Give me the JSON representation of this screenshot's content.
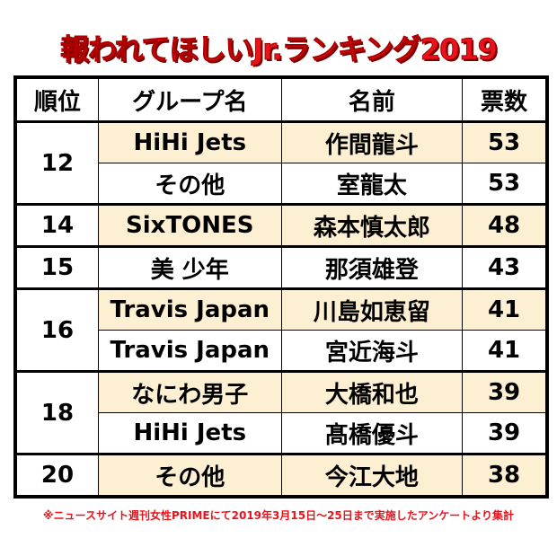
{
  "title": "報われてほしいJr.ランキング2019",
  "headers": [
    "順位",
    "グループ名",
    "名前",
    "票数"
  ],
  "rows": [
    {
      "rank": "12",
      "group": "HiHi Jets",
      "name": "作間龍斗",
      "votes": "53"
    },
    {
      "rank": "",
      "group": "その他",
      "name": "室龍太",
      "votes": "53"
    },
    {
      "rank": "14",
      "group": "SixTONES",
      "name": "森本慎太郎",
      "votes": "48"
    },
    {
      "rank": "15",
      "group": "美 少年",
      "name": "那須雄登",
      "votes": "43"
    },
    {
      "rank": "16",
      "group": "Travis Japan",
      "name": "川島如恵留",
      "votes": "41"
    },
    {
      "rank": "",
      "group": "Travis Japan",
      "name": "宮近海斗",
      "votes": "41"
    },
    {
      "rank": "18",
      "group": "なにわ男子",
      "name": "大橋和也",
      "votes": "39"
    },
    {
      "rank": "",
      "group": "HiHi Jets",
      "name": "髙橋優斗",
      "votes": "39"
    },
    {
      "rank": "20",
      "group": "その他",
      "name": "今江大地",
      "votes": "38"
    }
  ],
  "note": "※ニュースサイト週刊女性PRIMEにて2019年3月15日～25日まで実施したアンケートより集計",
  "colors": {
    "title": "#e8141c",
    "highlight_row": "#fdf0d2"
  }
}
